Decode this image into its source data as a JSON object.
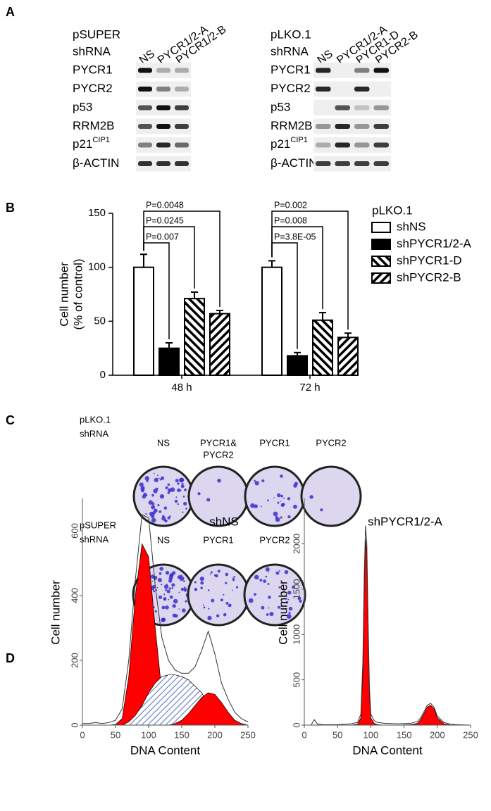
{
  "panel_labels": [
    "A",
    "B",
    "C",
    "D"
  ],
  "blots": [
    {
      "vector": "pSUPER",
      "kind": "shRNA",
      "lanes": [
        "NS",
        "PYCR1/2-A",
        "PYCR1/2-B"
      ],
      "rows": [
        "PYCR1",
        "PYCR2",
        "p53",
        "RRM2B",
        [
          "p21",
          "CIP1"
        ],
        "β-ACTIN"
      ]
    },
    {
      "vector": "pLKO.1",
      "kind": "shRNA",
      "lanes": [
        "NS",
        "PYCR1/2-A",
        "PYCR1-D",
        "PYCR2-B"
      ],
      "rows": [
        "PYCR1",
        "PYCR2",
        "p53",
        "RRM2B",
        [
          "p21",
          "CIP1"
        ],
        "β-ACTIN"
      ]
    }
  ],
  "colonies": [
    {
      "vector": "pLKO.1",
      "kind": "shRNA",
      "columns": [
        "NS",
        [
          "PYCR1&",
          "PYCR2"
        ],
        "PYCR1",
        "PYCR2"
      ]
    },
    {
      "vector": "pSUPER",
      "kind": "shRNA",
      "columns": [
        "NS",
        "PYCR1",
        "PYCR2"
      ]
    }
  ],
  "chart_data": [
    {
      "type": "bar",
      "ylabel": [
        "Cell number",
        "(% of control)"
      ],
      "categories": [
        "48 h",
        "72 h"
      ],
      "legend_title": "pLKO.1",
      "legend": "right",
      "series": [
        {
          "name": "shNS",
          "color": "#ffffff",
          "hatch": "none",
          "values": [
            100,
            100
          ],
          "errors": [
            12,
            6
          ]
        },
        {
          "name": "shPYCR1/2-A",
          "color": "#000000",
          "hatch": "none",
          "values": [
            25,
            18
          ],
          "errors": [
            5,
            3
          ]
        },
        {
          "name": "shPYCR1-D",
          "color": "#ffffff",
          "hatch": "back",
          "values": [
            71,
            51
          ],
          "errors": [
            6,
            7
          ]
        },
        {
          "name": "shPYCR2-B",
          "color": "#ffffff",
          "hatch": "forward",
          "values": [
            57,
            35
          ],
          "errors": [
            3,
            4
          ]
        }
      ],
      "annotations": [
        [
          "P=0.007",
          "P=0.0245",
          "P=0.0048"
        ],
        [
          "P=3.8E-05",
          "P=0.008",
          "P=0.002"
        ]
      ],
      "ylim": [
        0,
        150
      ],
      "yticks": [
        0,
        50,
        100,
        150
      ]
    },
    {
      "type": "area",
      "title": "shNS",
      "xlabel": "DNA Content",
      "ylabel": "Cell number",
      "x": [
        0,
        10,
        20,
        30,
        40,
        50,
        60,
        70,
        80,
        90,
        100,
        110,
        120,
        130,
        140,
        150,
        160,
        170,
        180,
        190,
        200,
        210,
        220,
        230,
        240,
        250
      ],
      "series": [
        {
          "color": "#ff0000",
          "fill": "solid",
          "values": [
            0,
            0,
            0,
            0,
            0,
            2,
            20,
            150,
            400,
            560,
            520,
            300,
            100,
            25,
            5,
            0,
            0,
            0,
            0,
            0,
            0,
            0,
            0,
            0,
            0,
            0
          ]
        },
        {
          "color": "#2244aa",
          "fill": "hatch",
          "values": [
            0,
            0,
            0,
            0,
            0,
            0,
            0,
            10,
            30,
            60,
            100,
            130,
            150,
            155,
            155,
            150,
            140,
            120,
            100,
            70,
            40,
            15,
            5,
            0,
            0,
            0
          ]
        },
        {
          "color": "#ff0000",
          "fill": "solid",
          "values": [
            0,
            0,
            0,
            0,
            0,
            0,
            0,
            0,
            0,
            0,
            0,
            0,
            0,
            0,
            5,
            15,
            35,
            60,
            85,
            100,
            95,
            70,
            40,
            15,
            5,
            0
          ]
        },
        {
          "color": "#333333",
          "fill": "none",
          "values": [
            5,
            5,
            8,
            5,
            8,
            15,
            50,
            200,
            450,
            650,
            640,
            430,
            270,
            200,
            170,
            160,
            160,
            180,
            230,
            290,
            220,
            130,
            80,
            40,
            20,
            10
          ]
        }
      ],
      "xlim": [
        0,
        250
      ],
      "xticks": [
        0,
        50,
        100,
        150,
        200,
        250
      ],
      "ylim": [
        0,
        700
      ],
      "yticks": [
        0,
        200,
        400,
        600
      ]
    },
    {
      "type": "area",
      "title": "shPYCR1/2-A",
      "xlabel": "DNA Content",
      "ylabel": "Cell number",
      "x": [
        0,
        10,
        15,
        20,
        30,
        40,
        50,
        60,
        70,
        80,
        85,
        88,
        90,
        92,
        94,
        96,
        98,
        100,
        105,
        110,
        120,
        140,
        160,
        170,
        175,
        180,
        185,
        190,
        195,
        200,
        210,
        220,
        230,
        250
      ],
      "series": [
        {
          "color": "#ff0000",
          "fill": "solid",
          "values": [
            0,
            0,
            0,
            0,
            0,
            0,
            0,
            0,
            0,
            10,
            80,
            600,
            1500,
            2050,
            1900,
            1000,
            330,
            80,
            20,
            5,
            0,
            0,
            0,
            0,
            0,
            0,
            0,
            0,
            0,
            0,
            0,
            0,
            0,
            0
          ]
        },
        {
          "color": "#ff0000",
          "fill": "solid",
          "values": [
            0,
            0,
            0,
            0,
            0,
            0,
            0,
            0,
            0,
            0,
            0,
            0,
            0,
            0,
            0,
            0,
            0,
            0,
            0,
            0,
            0,
            0,
            5,
            20,
            60,
            130,
            200,
            220,
            180,
            80,
            15,
            0,
            0,
            0
          ]
        },
        {
          "color": "#333333",
          "fill": "none",
          "values": [
            0,
            0,
            60,
            10,
            5,
            5,
            5,
            10,
            15,
            30,
            120,
            700,
            1600,
            2200,
            2000,
            1100,
            400,
            120,
            50,
            30,
            20,
            15,
            20,
            40,
            80,
            150,
            220,
            240,
            200,
            100,
            30,
            10,
            5,
            0
          ]
        }
      ],
      "xlim": [
        0,
        250
      ],
      "xticks": [
        0,
        50,
        100,
        150,
        200,
        250
      ],
      "ylim": [
        0,
        2500
      ],
      "yticks": [
        0,
        500,
        1000,
        1500,
        2000
      ]
    }
  ]
}
